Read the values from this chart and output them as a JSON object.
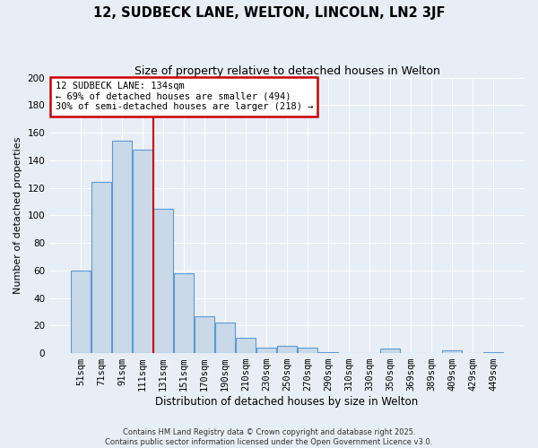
{
  "title": "12, SUDBECK LANE, WELTON, LINCOLN, LN2 3JF",
  "subtitle": "Size of property relative to detached houses in Welton",
  "xlabel": "Distribution of detached houses by size in Welton",
  "ylabel": "Number of detached properties",
  "bar_labels": [
    "51sqm",
    "71sqm",
    "91sqm",
    "111sqm",
    "131sqm",
    "151sqm",
    "170sqm",
    "190sqm",
    "210sqm",
    "230sqm",
    "250sqm",
    "270sqm",
    "290sqm",
    "310sqm",
    "330sqm",
    "350sqm",
    "369sqm",
    "389sqm",
    "409sqm",
    "429sqm",
    "449sqm"
  ],
  "bar_values": [
    60,
    124,
    154,
    148,
    105,
    58,
    27,
    22,
    11,
    4,
    5,
    4,
    1,
    0,
    0,
    3,
    0,
    0,
    2,
    0,
    1
  ],
  "bar_color": "#c9d9e8",
  "bar_edgecolor": "#5b9bd5",
  "vline_idx": 4,
  "vline_color": "#cc0000",
  "annotation_title": "12 SUDBECK LANE: 134sqm",
  "annotation_line2": "← 69% of detached houses are smaller (494)",
  "annotation_line3": "30% of semi-detached houses are larger (218) →",
  "annotation_box_color": "#cc0000",
  "annotation_fontsize": 7.5,
  "title_fontsize": 10.5,
  "subtitle_fontsize": 9,
  "ylabel_fontsize": 8,
  "xlabel_fontsize": 8.5,
  "tick_fontsize": 7.5,
  "background_color": "#e8eef5",
  "plot_background": "#e8eef5",
  "grid_color": "#ffffff",
  "footer_line1": "Contains HM Land Registry data © Crown copyright and database right 2025.",
  "footer_line2": "Contains public sector information licensed under the Open Government Licence v3.0.",
  "ylim": [
    0,
    200
  ],
  "yticks": [
    0,
    20,
    40,
    60,
    80,
    100,
    120,
    140,
    160,
    180,
    200
  ]
}
